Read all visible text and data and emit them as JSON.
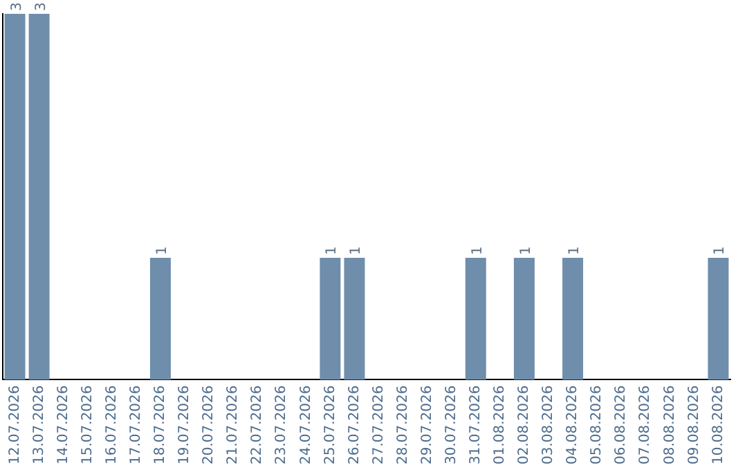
{
  "chart_data": {
    "type": "bar",
    "categories": [
      "12.07.2026",
      "13.07.2026",
      "14.07.2026",
      "15.07.2026",
      "16.07.2026",
      "17.07.2026",
      "18.07.2026",
      "19.07.2026",
      "20.07.2026",
      "21.07.2026",
      "22.07.2026",
      "23.07.2026",
      "24.07.2026",
      "25.07.2026",
      "26.07.2026",
      "27.07.2026",
      "28.07.2026",
      "29.07.2026",
      "30.07.2026",
      "31.07.2026",
      "01.08.2026",
      "02.08.2026",
      "03.08.2026",
      "04.08.2026",
      "05.08.2026",
      "06.08.2026",
      "07.08.2026",
      "08.08.2026",
      "09.08.2026",
      "10.08.2026"
    ],
    "values": [
      3,
      3,
      0,
      0,
      0,
      0,
      1,
      0,
      0,
      0,
      0,
      0,
      0,
      1,
      1,
      0,
      0,
      0,
      0,
      1,
      0,
      1,
      0,
      1,
      0,
      0,
      0,
      0,
      0,
      1
    ],
    "value_labels": [
      "3",
      "3",
      null,
      null,
      null,
      null,
      "1",
      null,
      null,
      null,
      null,
      null,
      null,
      "1",
      "1",
      null,
      null,
      null,
      null,
      "1",
      null,
      "1",
      null,
      "1",
      null,
      null,
      null,
      null,
      null,
      "1"
    ],
    "color": "#6e8eab",
    "grid": false,
    "legend": false,
    "tick_labels": "x"
  }
}
